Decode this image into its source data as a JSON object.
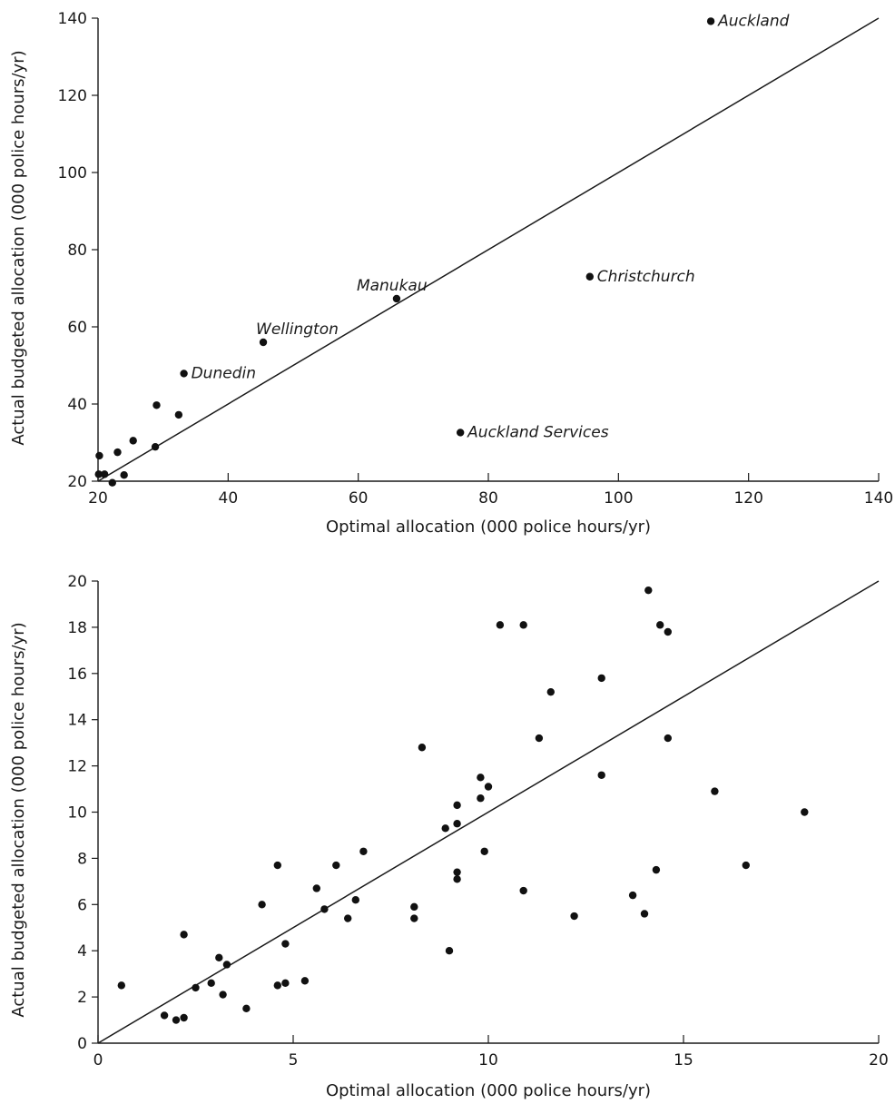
{
  "chart_data": [
    {
      "type": "scatter",
      "xlabel": "Optimal allocation (000 police hours/yr)",
      "ylabel": "Actual budgeted allocation (000 police  hours/yr)",
      "xlim": [
        20,
        140
      ],
      "ylim": [
        20,
        140
      ],
      "xticks": [
        20,
        40,
        60,
        80,
        100,
        120,
        140
      ],
      "yticks": [
        20,
        40,
        60,
        80,
        100,
        120,
        140
      ],
      "grid": false,
      "reference_line": {
        "x1": 20,
        "y1": 20,
        "x2": 140,
        "y2": 140
      },
      "points": [
        {
          "x": 114.2,
          "y": 139.2,
          "label": "Auckland"
        },
        {
          "x": 95.6,
          "y": 73.0,
          "label": "Christchurch"
        },
        {
          "x": 65.9,
          "y": 67.3,
          "label": "Manukau"
        },
        {
          "x": 45.4,
          "y": 56.0,
          "label": "Wellington"
        },
        {
          "x": 33.2,
          "y": 47.9,
          "label": "Dunedin"
        },
        {
          "x": 75.7,
          "y": 32.6,
          "label": "Auckland Services"
        },
        {
          "x": 29.0,
          "y": 39.7
        },
        {
          "x": 32.4,
          "y": 37.2
        },
        {
          "x": 25.4,
          "y": 30.5
        },
        {
          "x": 28.8,
          "y": 28.9
        },
        {
          "x": 23.0,
          "y": 27.5
        },
        {
          "x": 20.2,
          "y": 26.6
        },
        {
          "x": 20.1,
          "y": 21.8
        },
        {
          "x": 21.0,
          "y": 21.8
        },
        {
          "x": 24.0,
          "y": 21.6
        },
        {
          "x": 22.2,
          "y": 19.6
        }
      ]
    },
    {
      "type": "scatter",
      "xlabel": "Optimal allocation (000 police hours/yr)",
      "ylabel": "Actual budgeted allocation (000 police  hours/yr)",
      "xlim": [
        0,
        20
      ],
      "ylim": [
        0,
        20
      ],
      "xticks": [
        0,
        5,
        10,
        15,
        20
      ],
      "yticks": [
        0,
        2,
        4,
        6,
        8,
        10,
        12,
        14,
        16,
        18,
        20
      ],
      "grid": false,
      "reference_line": {
        "x1": 0,
        "y1": 0,
        "x2": 20,
        "y2": 20
      },
      "points": [
        {
          "x": 14.1,
          "y": 19.6
        },
        {
          "x": 10.3,
          "y": 18.1
        },
        {
          "x": 10.9,
          "y": 18.1
        },
        {
          "x": 14.4,
          "y": 18.1
        },
        {
          "x": 14.6,
          "y": 17.8
        },
        {
          "x": 12.9,
          "y": 15.8
        },
        {
          "x": 11.6,
          "y": 15.2
        },
        {
          "x": 11.3,
          "y": 13.2
        },
        {
          "x": 14.6,
          "y": 13.2
        },
        {
          "x": 8.3,
          "y": 12.8
        },
        {
          "x": 12.9,
          "y": 11.6
        },
        {
          "x": 9.8,
          "y": 11.5
        },
        {
          "x": 10.0,
          "y": 11.1
        },
        {
          "x": 15.8,
          "y": 10.9
        },
        {
          "x": 9.8,
          "y": 10.6
        },
        {
          "x": 9.2,
          "y": 10.3
        },
        {
          "x": 18.1,
          "y": 10.0
        },
        {
          "x": 9.2,
          "y": 9.5
        },
        {
          "x": 8.9,
          "y": 9.3
        },
        {
          "x": 6.8,
          "y": 8.3
        },
        {
          "x": 9.9,
          "y": 8.3
        },
        {
          "x": 4.6,
          "y": 7.7
        },
        {
          "x": 6.1,
          "y": 7.7
        },
        {
          "x": 16.6,
          "y": 7.7
        },
        {
          "x": 14.3,
          "y": 7.5
        },
        {
          "x": 9.2,
          "y": 7.4
        },
        {
          "x": 9.2,
          "y": 7.1
        },
        {
          "x": 5.6,
          "y": 6.7
        },
        {
          "x": 10.9,
          "y": 6.6
        },
        {
          "x": 13.7,
          "y": 6.4
        },
        {
          "x": 6.6,
          "y": 6.2
        },
        {
          "x": 4.2,
          "y": 6.0
        },
        {
          "x": 8.1,
          "y": 5.9
        },
        {
          "x": 5.8,
          "y": 5.8
        },
        {
          "x": 14.0,
          "y": 5.6
        },
        {
          "x": 12.2,
          "y": 5.5
        },
        {
          "x": 6.4,
          "y": 5.4
        },
        {
          "x": 8.1,
          "y": 5.4
        },
        {
          "x": 2.2,
          "y": 4.7
        },
        {
          "x": 4.8,
          "y": 4.3
        },
        {
          "x": 9.0,
          "y": 4.0
        },
        {
          "x": 3.1,
          "y": 3.7
        },
        {
          "x": 3.3,
          "y": 3.4
        },
        {
          "x": 5.3,
          "y": 2.7
        },
        {
          "x": 2.9,
          "y": 2.6
        },
        {
          "x": 4.8,
          "y": 2.6
        },
        {
          "x": 0.6,
          "y": 2.5
        },
        {
          "x": 4.6,
          "y": 2.5
        },
        {
          "x": 2.5,
          "y": 2.4
        },
        {
          "x": 3.2,
          "y": 2.1
        },
        {
          "x": 3.8,
          "y": 1.5
        },
        {
          "x": 1.7,
          "y": 1.2
        },
        {
          "x": 2.2,
          "y": 1.1
        },
        {
          "x": 2.0,
          "y": 1.0
        }
      ]
    }
  ]
}
